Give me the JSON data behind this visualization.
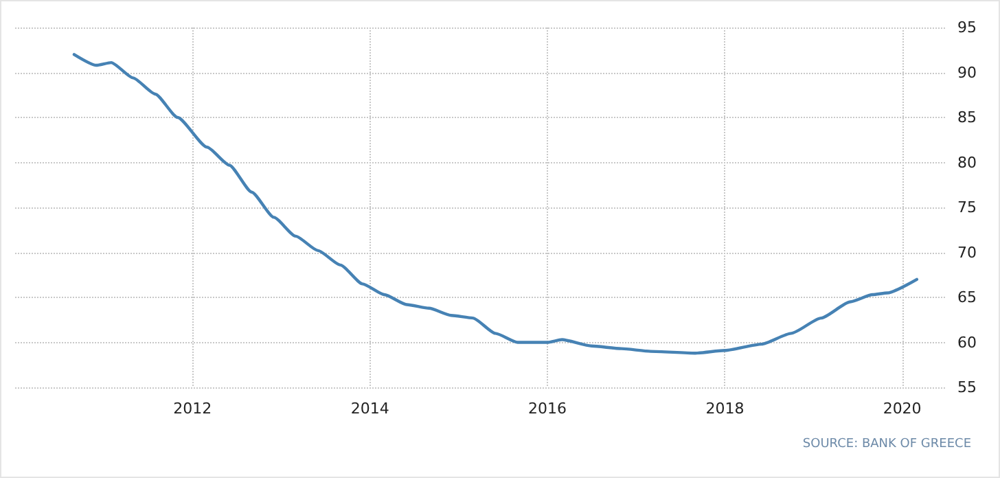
{
  "chart_data": {
    "type": "line",
    "annotations": [
      "SOURCE: BANK OF GREECE"
    ],
    "x": [
      "2010-09",
      "2010-12",
      "2011-02",
      "2011-05",
      "2011-08",
      "2011-11",
      "2012-03",
      "2012-06",
      "2012-09",
      "2012-12",
      "2013-03",
      "2013-06",
      "2013-09",
      "2013-12",
      "2014-03",
      "2014-06",
      "2014-09",
      "2014-12",
      "2015-03",
      "2015-06",
      "2015-09",
      "2016-01",
      "2016-03",
      "2016-07",
      "2016-11",
      "2017-03",
      "2017-09",
      "2018-01",
      "2018-06",
      "2018-10",
      "2019-02",
      "2019-06",
      "2019-09",
      "2019-11",
      "2020-03"
    ],
    "series": [
      {
        "color": "#4682b4",
        "values": [
          92.0,
          90.8,
          91.1,
          89.4,
          87.6,
          85.0,
          81.7,
          79.7,
          76.7,
          73.9,
          71.8,
          70.2,
          68.6,
          66.5,
          65.3,
          64.2,
          63.8,
          63.0,
          62.7,
          61.0,
          60.0,
          60.0,
          60.3,
          59.6,
          59.3,
          59.0,
          58.8,
          59.1,
          59.8,
          61.0,
          62.7,
          64.5,
          65.3,
          65.5,
          67.0
        ]
      }
    ],
    "xlim": [
      "2010-01",
      "2020-07"
    ],
    "xticks": [
      "2012",
      "2014",
      "2016",
      "2018",
      "2020"
    ],
    "ylim": [
      55,
      95
    ],
    "yticks": [
      55,
      60,
      65,
      70,
      75,
      80,
      85,
      90,
      95
    ],
    "grid": true,
    "marker": "none",
    "line_style": "solid"
  }
}
